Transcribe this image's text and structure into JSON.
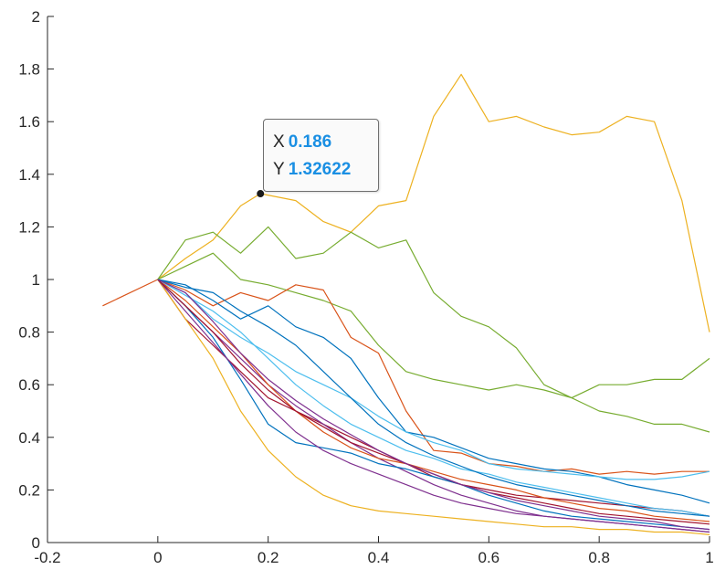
{
  "chart_data": {
    "type": "line",
    "title": "",
    "xlabel": "",
    "ylabel": "",
    "xlim": [
      -0.2,
      1
    ],
    "ylim": [
      0,
      2
    ],
    "xticks": [
      "-0.2",
      "0",
      "0.2",
      "0.4",
      "0.6",
      "0.8",
      "1"
    ],
    "yticks": [
      "0",
      "0.2",
      "0.4",
      "0.6",
      "0.8",
      "1",
      "1.2",
      "1.4",
      "1.6",
      "1.8",
      "2"
    ],
    "grid": false,
    "colors": {
      "blue": "#0072BD",
      "orange": "#D95319",
      "yellow": "#EDB120",
      "purple": "#7E2F8E",
      "green": "#77AC30",
      "cyan": "#4DBEEE",
      "red": "#A2142F"
    },
    "series": [
      {
        "color": "orange",
        "x": [
          -0.1,
          0
        ],
        "y": [
          0.9,
          1.0
        ]
      },
      {
        "color": "yellow",
        "x": [
          0,
          0.05,
          0.1,
          0.15,
          0.186,
          0.25,
          0.3,
          0.35,
          0.4,
          0.45,
          0.5,
          0.55,
          0.6,
          0.65,
          0.7,
          0.75,
          0.8,
          0.85,
          0.9,
          0.95,
          1.0
        ],
        "y": [
          1.0,
          1.08,
          1.15,
          1.28,
          1.32622,
          1.3,
          1.22,
          1.18,
          1.28,
          1.3,
          1.62,
          1.78,
          1.6,
          1.62,
          1.58,
          1.55,
          1.56,
          1.62,
          1.6,
          1.3,
          0.8
        ]
      },
      {
        "color": "green",
        "x": [
          0,
          0.05,
          0.1,
          0.15,
          0.2,
          0.25,
          0.3,
          0.35,
          0.4,
          0.45,
          0.5,
          0.55,
          0.6,
          0.65,
          0.7,
          0.75,
          0.8,
          0.85,
          0.9,
          0.95,
          1.0
        ],
        "y": [
          1.0,
          1.15,
          1.18,
          1.1,
          1.2,
          1.08,
          1.1,
          1.18,
          1.12,
          1.15,
          0.95,
          0.86,
          0.82,
          0.74,
          0.6,
          0.55,
          0.6,
          0.6,
          0.62,
          0.62,
          0.7
        ]
      },
      {
        "color": "green",
        "x": [
          0,
          0.05,
          0.1,
          0.15,
          0.2,
          0.25,
          0.3,
          0.35,
          0.4,
          0.45,
          0.5,
          0.55,
          0.6,
          0.65,
          0.7,
          0.75,
          0.8,
          0.85,
          0.9,
          0.95,
          1.0
        ],
        "y": [
          1.0,
          1.05,
          1.1,
          1.0,
          0.98,
          0.95,
          0.92,
          0.88,
          0.75,
          0.65,
          0.62,
          0.6,
          0.58,
          0.6,
          0.58,
          0.55,
          0.5,
          0.48,
          0.45,
          0.45,
          0.42
        ]
      },
      {
        "color": "orange",
        "x": [
          0,
          0.05,
          0.1,
          0.15,
          0.2,
          0.25,
          0.3,
          0.35,
          0.4,
          0.45,
          0.5,
          0.55,
          0.6,
          0.65,
          0.7,
          0.75,
          0.8,
          0.85,
          0.9,
          0.95,
          1.0
        ],
        "y": [
          1.0,
          0.96,
          0.9,
          0.95,
          0.92,
          0.98,
          0.96,
          0.78,
          0.72,
          0.5,
          0.35,
          0.34,
          0.3,
          0.29,
          0.27,
          0.28,
          0.26,
          0.27,
          0.26,
          0.27,
          0.27
        ]
      },
      {
        "color": "blue",
        "x": [
          0,
          0.05,
          0.1,
          0.15,
          0.2,
          0.25,
          0.3,
          0.35,
          0.4,
          0.45,
          0.5,
          0.55,
          0.6,
          0.65,
          0.7,
          0.75,
          0.8,
          0.85,
          0.9,
          0.95,
          1.0
        ],
        "y": [
          1.0,
          0.98,
          0.92,
          0.85,
          0.9,
          0.82,
          0.78,
          0.7,
          0.55,
          0.42,
          0.4,
          0.36,
          0.32,
          0.3,
          0.28,
          0.27,
          0.25,
          0.22,
          0.2,
          0.18,
          0.15
        ]
      },
      {
        "color": "cyan",
        "x": [
          0,
          0.05,
          0.1,
          0.15,
          0.2,
          0.25,
          0.3,
          0.35,
          0.4,
          0.45,
          0.5,
          0.55,
          0.6,
          0.65,
          0.7,
          0.75,
          0.8,
          0.85,
          0.9,
          0.95,
          1.0
        ],
        "y": [
          1.0,
          0.95,
          0.85,
          0.78,
          0.72,
          0.65,
          0.6,
          0.55,
          0.48,
          0.42,
          0.38,
          0.35,
          0.3,
          0.28,
          0.27,
          0.26,
          0.25,
          0.24,
          0.24,
          0.25,
          0.27
        ]
      },
      {
        "color": "red",
        "x": [
          0,
          0.05,
          0.1,
          0.15,
          0.2,
          0.25,
          0.3,
          0.35,
          0.4,
          0.45,
          0.5,
          0.55,
          0.6,
          0.65,
          0.7,
          0.75,
          0.8,
          0.85,
          0.9,
          0.95,
          1.0
        ],
        "y": [
          1.0,
          0.85,
          0.75,
          0.65,
          0.55,
          0.5,
          0.45,
          0.4,
          0.35,
          0.3,
          0.25,
          0.22,
          0.2,
          0.18,
          0.17,
          0.16,
          0.15,
          0.14,
          0.13,
          0.12,
          0.1
        ]
      },
      {
        "color": "purple",
        "x": [
          0,
          0.05,
          0.1,
          0.15,
          0.2,
          0.25,
          0.3,
          0.35,
          0.4,
          0.45,
          0.5,
          0.55,
          0.6,
          0.65,
          0.7,
          0.75,
          0.8,
          0.85,
          0.9,
          0.95,
          1.0
        ],
        "y": [
          1.0,
          0.9,
          0.8,
          0.7,
          0.6,
          0.52,
          0.45,
          0.38,
          0.32,
          0.27,
          0.22,
          0.18,
          0.15,
          0.12,
          0.1,
          0.09,
          0.08,
          0.07,
          0.06,
          0.05,
          0.04
        ]
      },
      {
        "color": "yellow",
        "x": [
          0,
          0.05,
          0.1,
          0.15,
          0.2,
          0.25,
          0.3,
          0.35,
          0.4,
          0.45,
          0.5,
          0.55,
          0.6,
          0.65,
          0.7,
          0.75,
          0.8,
          0.85,
          0.9,
          0.95,
          1.0
        ],
        "y": [
          1.0,
          0.85,
          0.7,
          0.5,
          0.35,
          0.25,
          0.18,
          0.14,
          0.12,
          0.11,
          0.1,
          0.09,
          0.08,
          0.07,
          0.06,
          0.06,
          0.05,
          0.05,
          0.04,
          0.04,
          0.03
        ]
      },
      {
        "color": "blue",
        "x": [
          0,
          0.05,
          0.1,
          0.15,
          0.2,
          0.25,
          0.3,
          0.35,
          0.4,
          0.45,
          0.5,
          0.55,
          0.6,
          0.65,
          0.7,
          0.75,
          0.8,
          0.85,
          0.9,
          0.95,
          1.0
        ],
        "y": [
          1.0,
          0.9,
          0.78,
          0.62,
          0.45,
          0.38,
          0.36,
          0.34,
          0.3,
          0.28,
          0.25,
          0.22,
          0.18,
          0.15,
          0.12,
          0.1,
          0.09,
          0.08,
          0.07,
          0.06,
          0.05
        ]
      },
      {
        "color": "orange",
        "x": [
          0,
          0.05,
          0.1,
          0.15,
          0.2,
          0.25,
          0.3,
          0.35,
          0.4,
          0.45,
          0.5,
          0.55,
          0.6,
          0.65,
          0.7,
          0.75,
          0.8,
          0.85,
          0.9,
          0.95,
          1.0
        ],
        "y": [
          1.0,
          0.92,
          0.82,
          0.72,
          0.6,
          0.5,
          0.42,
          0.36,
          0.32,
          0.3,
          0.27,
          0.24,
          0.22,
          0.2,
          0.17,
          0.15,
          0.13,
          0.12,
          0.1,
          0.09,
          0.08
        ]
      },
      {
        "color": "purple",
        "x": [
          0,
          0.05,
          0.1,
          0.15,
          0.2,
          0.25,
          0.3,
          0.35,
          0.4,
          0.45,
          0.5,
          0.55,
          0.6,
          0.65,
          0.7,
          0.75,
          0.8,
          0.85,
          0.9,
          0.95,
          1.0
        ],
        "y": [
          1.0,
          0.88,
          0.76,
          0.64,
          0.52,
          0.42,
          0.35,
          0.3,
          0.26,
          0.22,
          0.18,
          0.15,
          0.13,
          0.11,
          0.1,
          0.09,
          0.08,
          0.07,
          0.06,
          0.05,
          0.04
        ]
      },
      {
        "color": "cyan",
        "x": [
          0,
          0.05,
          0.1,
          0.15,
          0.2,
          0.25,
          0.3,
          0.35,
          0.4,
          0.45,
          0.5,
          0.55,
          0.6,
          0.65,
          0.7,
          0.75,
          0.8,
          0.85,
          0.9,
          0.95,
          1.0
        ],
        "y": [
          1.0,
          0.94,
          0.88,
          0.8,
          0.7,
          0.6,
          0.52,
          0.45,
          0.4,
          0.35,
          0.32,
          0.28,
          0.26,
          0.23,
          0.21,
          0.19,
          0.17,
          0.15,
          0.13,
          0.12,
          0.1
        ]
      },
      {
        "color": "red",
        "x": [
          0,
          0.05,
          0.1,
          0.15,
          0.2,
          0.25,
          0.3,
          0.35,
          0.4,
          0.45,
          0.5,
          0.55,
          0.6,
          0.65,
          0.7,
          0.75,
          0.8,
          0.85,
          0.9,
          0.95,
          1.0
        ],
        "y": [
          1.0,
          0.9,
          0.8,
          0.68,
          0.58,
          0.5,
          0.44,
          0.38,
          0.34,
          0.3,
          0.26,
          0.22,
          0.19,
          0.17,
          0.15,
          0.13,
          0.11,
          0.1,
          0.09,
          0.08,
          0.07
        ]
      },
      {
        "color": "blue",
        "x": [
          0,
          0.05,
          0.1,
          0.15,
          0.2,
          0.25,
          0.3,
          0.35,
          0.4,
          0.45,
          0.5,
          0.55,
          0.6,
          0.65,
          0.7,
          0.75,
          0.8,
          0.85,
          0.9,
          0.95,
          1.0
        ],
        "y": [
          1.0,
          0.97,
          0.95,
          0.88,
          0.82,
          0.75,
          0.65,
          0.55,
          0.45,
          0.38,
          0.33,
          0.29,
          0.25,
          0.22,
          0.2,
          0.18,
          0.16,
          0.14,
          0.12,
          0.11,
          0.1
        ]
      },
      {
        "color": "purple",
        "x": [
          0,
          0.05,
          0.1,
          0.15,
          0.2,
          0.25,
          0.3,
          0.35,
          0.4,
          0.45,
          0.5,
          0.55,
          0.6,
          0.65,
          0.7,
          0.75,
          0.8,
          0.85,
          0.9,
          0.95,
          1.0
        ],
        "y": [
          1.0,
          0.95,
          0.84,
          0.72,
          0.62,
          0.54,
          0.47,
          0.41,
          0.35,
          0.3,
          0.26,
          0.22,
          0.19,
          0.16,
          0.14,
          0.12,
          0.1,
          0.09,
          0.08,
          0.06,
          0.05
        ]
      }
    ],
    "datatip": {
      "x_label": "X",
      "x_value": "0.186",
      "y_label": "Y",
      "y_value": "1.32622"
    }
  }
}
